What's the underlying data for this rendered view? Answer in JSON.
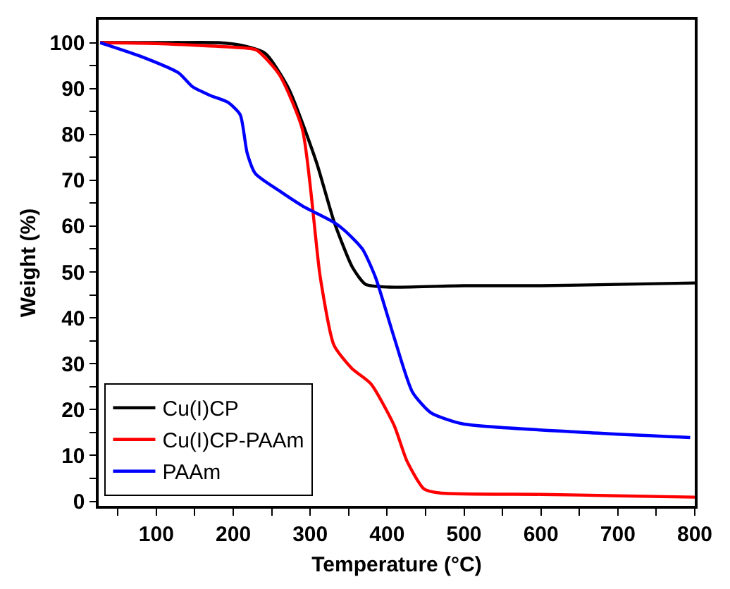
{
  "chart_data": {
    "type": "line",
    "xlabel": "Temperature (°C)",
    "ylabel": "Weight (%)",
    "xlim": [
      25,
      800
    ],
    "ylim": [
      -1,
      105
    ],
    "xticks": [
      {
        "value": 50,
        "label": null
      },
      100,
      {
        "value": 150,
        "label": null
      },
      200,
      {
        "value": 250,
        "label": null
      },
      300,
      {
        "value": 350,
        "label": null
      },
      400,
      {
        "value": 450,
        "label": null
      },
      500,
      {
        "value": 550,
        "label": null
      },
      600,
      {
        "value": 650,
        "label": null
      },
      700,
      {
        "value": 750,
        "label": null
      },
      800
    ],
    "yticks": [
      0,
      {
        "value": 5,
        "label": null
      },
      10,
      {
        "value": 15,
        "label": null
      },
      20,
      {
        "value": 25,
        "label": null
      },
      30,
      {
        "value": 35,
        "label": null
      },
      40,
      {
        "value": 45,
        "label": null
      },
      50,
      {
        "value": 55,
        "label": null
      },
      60,
      {
        "value": 65,
        "label": null
      },
      70,
      {
        "value": 75,
        "label": null
      },
      80,
      {
        "value": 85,
        "label": null
      },
      90,
      {
        "value": 95,
        "label": null
      },
      100
    ],
    "legend": "bottom left",
    "marker": "none",
    "line_style": "solid",
    "series": [
      {
        "name": "Cu(I)CP",
        "color": "#000000",
        "x": [
          27,
          100,
          180,
          211,
          242,
          272,
          308,
          331,
          355,
          372,
          403,
          500,
          600,
          700,
          800
        ],
        "values": [
          100,
          100,
          100,
          99.4,
          97.6,
          90,
          74,
          61,
          51,
          47.3,
          46.7,
          47,
          47,
          47.3,
          47.6
        ]
      },
      {
        "name": "Cu(I)CP-PAAm",
        "color": "#ff0000",
        "x": [
          27,
          100,
          200,
          230,
          260,
          290,
          313,
          331,
          354,
          379,
          409,
          426,
          448,
          469,
          600,
          700,
          800
        ],
        "values": [
          100,
          99.8,
          99,
          98.4,
          93,
          81,
          49,
          34,
          29,
          25.6,
          16.6,
          8.7,
          2.7,
          1.8,
          1.5,
          1.2,
          0.9
        ]
      },
      {
        "name": "PAAm",
        "color": "#0000ff",
        "x": [
          27,
          80,
          129,
          147,
          170,
          193,
          209,
          218,
          229,
          259,
          290,
          331,
          345,
          368,
          385,
          409,
          433,
          457,
          498,
          648,
          794
        ],
        "values": [
          100,
          97,
          93.4,
          90.4,
          88.5,
          87,
          84.3,
          76,
          71.4,
          67.8,
          64.4,
          60.8,
          59,
          55,
          48.8,
          35.8,
          23.8,
          19.3,
          16.9,
          15.1,
          13.9
        ]
      }
    ]
  }
}
